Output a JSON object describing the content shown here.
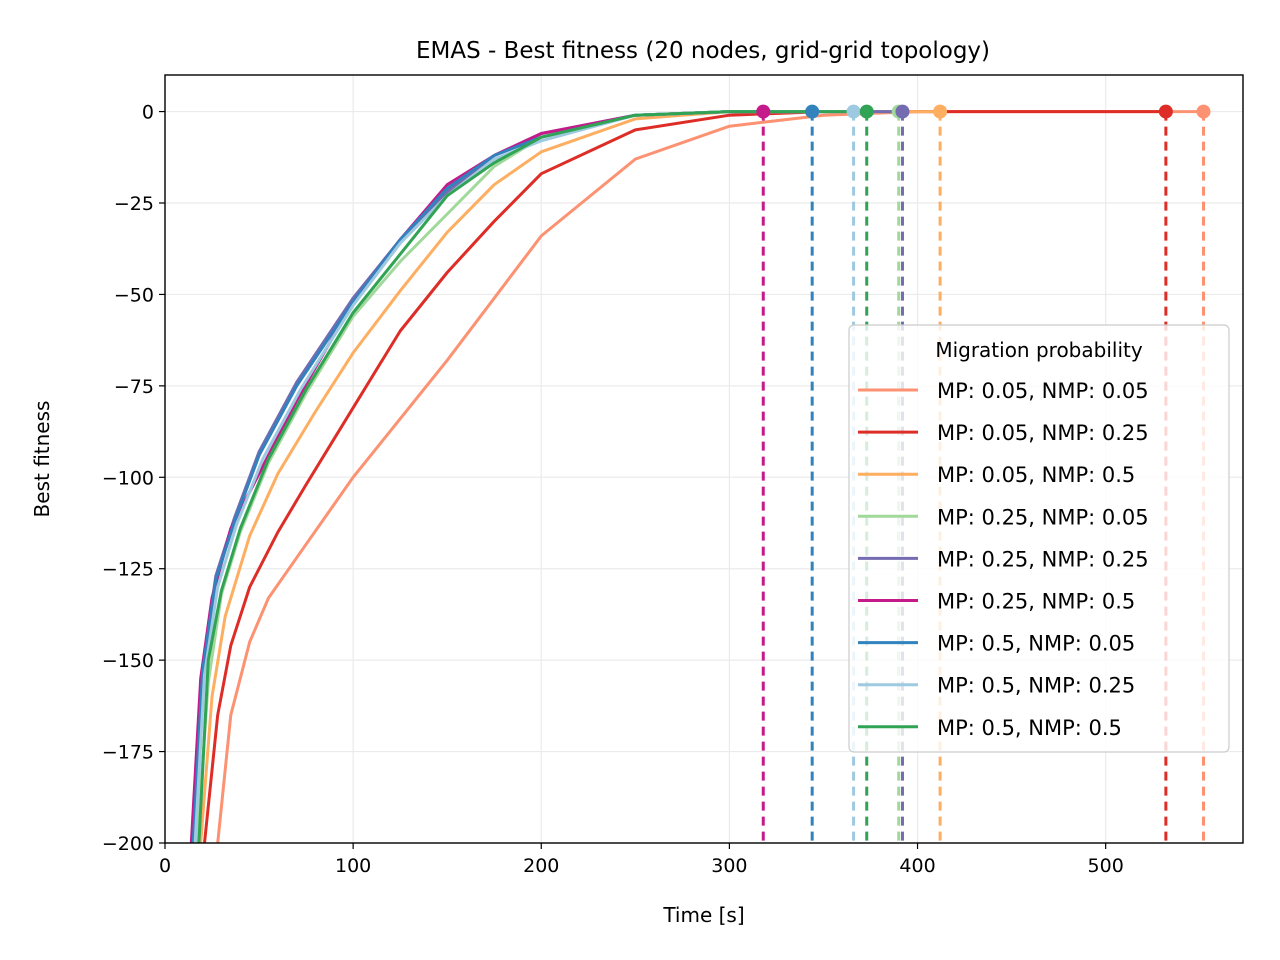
{
  "chart_data": {
    "type": "line",
    "title": "EMAS - Best fitness (20 nodes, grid-grid topology)",
    "xlabel": "Time [s]",
    "ylabel": "Best fitness",
    "xlim": [
      0,
      573
    ],
    "ylim": [
      -200,
      10
    ],
    "xticks": [
      0,
      100,
      200,
      300,
      400,
      500
    ],
    "yticks": [
      0,
      -25,
      -50,
      -75,
      -100,
      -125,
      -150,
      -175,
      -200
    ],
    "xtick_labels": [
      "0",
      "100",
      "200",
      "300",
      "400",
      "500"
    ],
    "ytick_labels": [
      "0",
      "−25",
      "−50",
      "−75",
      "−100",
      "−125",
      "−150",
      "−175",
      "−200"
    ],
    "grid": true,
    "legend": {
      "title": "Migration probability",
      "placement": "center-right"
    },
    "series": [
      {
        "name": "MP: 0.05, NMP: 0.05",
        "color": "#fc9272",
        "end_time": 552,
        "x": [
          28,
          35,
          45,
          55,
          70,
          100,
          150,
          200,
          250,
          300,
          350,
          400,
          450,
          500,
          552
        ],
        "y": [
          -200,
          -165,
          -145,
          -133,
          -122,
          -100,
          -68,
          -34,
          -13,
          -4,
          -1,
          0,
          0,
          0,
          0
        ]
      },
      {
        "name": "MP: 0.05, NMP: 0.25",
        "color": "#de2d26",
        "end_time": 532,
        "x": [
          21,
          28,
          35,
          45,
          60,
          75,
          100,
          125,
          150,
          175,
          200,
          250,
          300,
          350,
          400,
          450,
          532
        ],
        "y": [
          -200,
          -165,
          -146,
          -130,
          -115,
          -102,
          -81,
          -60,
          -44,
          -30,
          -17,
          -5,
          -1,
          0,
          0,
          0,
          0
        ]
      },
      {
        "name": "MP: 0.05, NMP: 0.5",
        "color": "#fdae61",
        "end_time": 412,
        "x": [
          19,
          25,
          32,
          45,
          60,
          80,
          100,
          125,
          150,
          175,
          200,
          250,
          300,
          350,
          412
        ],
        "y": [
          -200,
          -160,
          -138,
          -116,
          -99,
          -82,
          -66,
          -49,
          -33,
          -20,
          -11,
          -2,
          0,
          0,
          0
        ]
      },
      {
        "name": "MP: 0.25, NMP: 0.05",
        "color": "#a1d99b",
        "end_time": 390,
        "x": [
          17,
          23,
          30,
          40,
          55,
          75,
          100,
          125,
          150,
          175,
          200,
          250,
          300,
          350,
          390
        ],
        "y": [
          -200,
          -156,
          -132,
          -115,
          -96,
          -77,
          -56,
          -41,
          -28,
          -15,
          -7,
          -1,
          0,
          0,
          0
        ]
      },
      {
        "name": "MP: 0.25, NMP: 0.25",
        "color": "#756bb1",
        "end_time": 392,
        "x": [
          15,
          20,
          27,
          37,
          50,
          70,
          100,
          125,
          150,
          175,
          200,
          250,
          300,
          350,
          392
        ],
        "y": [
          -200,
          -152,
          -127,
          -111,
          -93,
          -74,
          -51,
          -35,
          -22,
          -12,
          -6,
          -1,
          0,
          0,
          0
        ]
      },
      {
        "name": "MP: 0.25, NMP: 0.5",
        "color": "#c51b8a",
        "end_time": 318,
        "x": [
          14,
          19,
          25,
          35,
          50,
          70,
          100,
          125,
          150,
          175,
          200,
          250,
          300,
          318
        ],
        "y": [
          -200,
          -155,
          -133,
          -114,
          -99,
          -79,
          -52,
          -35,
          -20,
          -12,
          -6,
          -1,
          0,
          0
        ]
      },
      {
        "name": "MP: 0.5, NMP: 0.05",
        "color": "#3182bd",
        "end_time": 344,
        "x": [
          15,
          20,
          27,
          37,
          50,
          70,
          100,
          125,
          150,
          175,
          200,
          250,
          300,
          344
        ],
        "y": [
          -200,
          -153,
          -128,
          -112,
          -94,
          -75,
          -52,
          -35,
          -21,
          -12,
          -7,
          -1,
          0,
          0
        ]
      },
      {
        "name": "MP: 0.5, NMP: 0.25",
        "color": "#9ecae1",
        "end_time": 366,
        "x": [
          16,
          21,
          28,
          38,
          52,
          72,
          100,
          125,
          150,
          175,
          200,
          250,
          300,
          366
        ],
        "y": [
          -200,
          -154,
          -130,
          -113,
          -95,
          -76,
          -53,
          -36,
          -23,
          -13,
          -8,
          -1,
          0,
          0
        ]
      },
      {
        "name": "MP: 0.5, NMP: 0.5",
        "color": "#31a354",
        "end_time": 373,
        "x": [
          18,
          23,
          30,
          40,
          55,
          75,
          100,
          125,
          150,
          175,
          200,
          250,
          300,
          350,
          373
        ],
        "y": [
          -200,
          -150,
          -131,
          -114,
          -95,
          -76,
          -55,
          -39,
          -23,
          -14,
          -7,
          -1,
          0,
          0,
          0
        ]
      }
    ]
  }
}
